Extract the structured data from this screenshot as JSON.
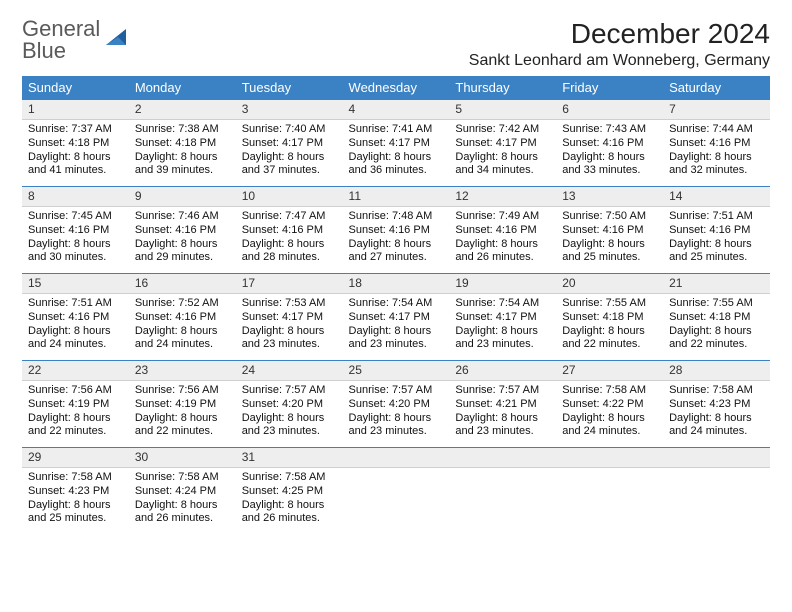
{
  "logo": {
    "line1": "General",
    "line2": "Blue"
  },
  "title": "December 2024",
  "location": "Sankt Leonhard am Wonneberg, Germany",
  "colors": {
    "header_bg": "#3b82c4",
    "header_text": "#ffffff",
    "daynum_bg": "#eeeeee",
    "daynum_border_top": "#3b82c4",
    "text": "#000000",
    "logo_gray": "#5a5a5a",
    "logo_blue": "#3b82c4"
  },
  "weekdays": [
    "Sunday",
    "Monday",
    "Tuesday",
    "Wednesday",
    "Thursday",
    "Friday",
    "Saturday"
  ],
  "weeks": [
    [
      {
        "n": "1",
        "sr": "Sunrise: 7:37 AM",
        "ss": "Sunset: 4:18 PM",
        "dl": "Daylight: 8 hours and 41 minutes."
      },
      {
        "n": "2",
        "sr": "Sunrise: 7:38 AM",
        "ss": "Sunset: 4:18 PM",
        "dl": "Daylight: 8 hours and 39 minutes."
      },
      {
        "n": "3",
        "sr": "Sunrise: 7:40 AM",
        "ss": "Sunset: 4:17 PM",
        "dl": "Daylight: 8 hours and 37 minutes."
      },
      {
        "n": "4",
        "sr": "Sunrise: 7:41 AM",
        "ss": "Sunset: 4:17 PM",
        "dl": "Daylight: 8 hours and 36 minutes."
      },
      {
        "n": "5",
        "sr": "Sunrise: 7:42 AM",
        "ss": "Sunset: 4:17 PM",
        "dl": "Daylight: 8 hours and 34 minutes."
      },
      {
        "n": "6",
        "sr": "Sunrise: 7:43 AM",
        "ss": "Sunset: 4:16 PM",
        "dl": "Daylight: 8 hours and 33 minutes."
      },
      {
        "n": "7",
        "sr": "Sunrise: 7:44 AM",
        "ss": "Sunset: 4:16 PM",
        "dl": "Daylight: 8 hours and 32 minutes."
      }
    ],
    [
      {
        "n": "8",
        "sr": "Sunrise: 7:45 AM",
        "ss": "Sunset: 4:16 PM",
        "dl": "Daylight: 8 hours and 30 minutes."
      },
      {
        "n": "9",
        "sr": "Sunrise: 7:46 AM",
        "ss": "Sunset: 4:16 PM",
        "dl": "Daylight: 8 hours and 29 minutes."
      },
      {
        "n": "10",
        "sr": "Sunrise: 7:47 AM",
        "ss": "Sunset: 4:16 PM",
        "dl": "Daylight: 8 hours and 28 minutes."
      },
      {
        "n": "11",
        "sr": "Sunrise: 7:48 AM",
        "ss": "Sunset: 4:16 PM",
        "dl": "Daylight: 8 hours and 27 minutes."
      },
      {
        "n": "12",
        "sr": "Sunrise: 7:49 AM",
        "ss": "Sunset: 4:16 PM",
        "dl": "Daylight: 8 hours and 26 minutes."
      },
      {
        "n": "13",
        "sr": "Sunrise: 7:50 AM",
        "ss": "Sunset: 4:16 PM",
        "dl": "Daylight: 8 hours and 25 minutes."
      },
      {
        "n": "14",
        "sr": "Sunrise: 7:51 AM",
        "ss": "Sunset: 4:16 PM",
        "dl": "Daylight: 8 hours and 25 minutes."
      }
    ],
    [
      {
        "n": "15",
        "sr": "Sunrise: 7:51 AM",
        "ss": "Sunset: 4:16 PM",
        "dl": "Daylight: 8 hours and 24 minutes."
      },
      {
        "n": "16",
        "sr": "Sunrise: 7:52 AM",
        "ss": "Sunset: 4:16 PM",
        "dl": "Daylight: 8 hours and 24 minutes."
      },
      {
        "n": "17",
        "sr": "Sunrise: 7:53 AM",
        "ss": "Sunset: 4:17 PM",
        "dl": "Daylight: 8 hours and 23 minutes."
      },
      {
        "n": "18",
        "sr": "Sunrise: 7:54 AM",
        "ss": "Sunset: 4:17 PM",
        "dl": "Daylight: 8 hours and 23 minutes."
      },
      {
        "n": "19",
        "sr": "Sunrise: 7:54 AM",
        "ss": "Sunset: 4:17 PM",
        "dl": "Daylight: 8 hours and 23 minutes."
      },
      {
        "n": "20",
        "sr": "Sunrise: 7:55 AM",
        "ss": "Sunset: 4:18 PM",
        "dl": "Daylight: 8 hours and 22 minutes."
      },
      {
        "n": "21",
        "sr": "Sunrise: 7:55 AM",
        "ss": "Sunset: 4:18 PM",
        "dl": "Daylight: 8 hours and 22 minutes."
      }
    ],
    [
      {
        "n": "22",
        "sr": "Sunrise: 7:56 AM",
        "ss": "Sunset: 4:19 PM",
        "dl": "Daylight: 8 hours and 22 minutes."
      },
      {
        "n": "23",
        "sr": "Sunrise: 7:56 AM",
        "ss": "Sunset: 4:19 PM",
        "dl": "Daylight: 8 hours and 22 minutes."
      },
      {
        "n": "24",
        "sr": "Sunrise: 7:57 AM",
        "ss": "Sunset: 4:20 PM",
        "dl": "Daylight: 8 hours and 23 minutes."
      },
      {
        "n": "25",
        "sr": "Sunrise: 7:57 AM",
        "ss": "Sunset: 4:20 PM",
        "dl": "Daylight: 8 hours and 23 minutes."
      },
      {
        "n": "26",
        "sr": "Sunrise: 7:57 AM",
        "ss": "Sunset: 4:21 PM",
        "dl": "Daylight: 8 hours and 23 minutes."
      },
      {
        "n": "27",
        "sr": "Sunrise: 7:58 AM",
        "ss": "Sunset: 4:22 PM",
        "dl": "Daylight: 8 hours and 24 minutes."
      },
      {
        "n": "28",
        "sr": "Sunrise: 7:58 AM",
        "ss": "Sunset: 4:23 PM",
        "dl": "Daylight: 8 hours and 24 minutes."
      }
    ],
    [
      {
        "n": "29",
        "sr": "Sunrise: 7:58 AM",
        "ss": "Sunset: 4:23 PM",
        "dl": "Daylight: 8 hours and 25 minutes."
      },
      {
        "n": "30",
        "sr": "Sunrise: 7:58 AM",
        "ss": "Sunset: 4:24 PM",
        "dl": "Daylight: 8 hours and 26 minutes."
      },
      {
        "n": "31",
        "sr": "Sunrise: 7:58 AM",
        "ss": "Sunset: 4:25 PM",
        "dl": "Daylight: 8 hours and 26 minutes."
      },
      null,
      null,
      null,
      null
    ]
  ]
}
